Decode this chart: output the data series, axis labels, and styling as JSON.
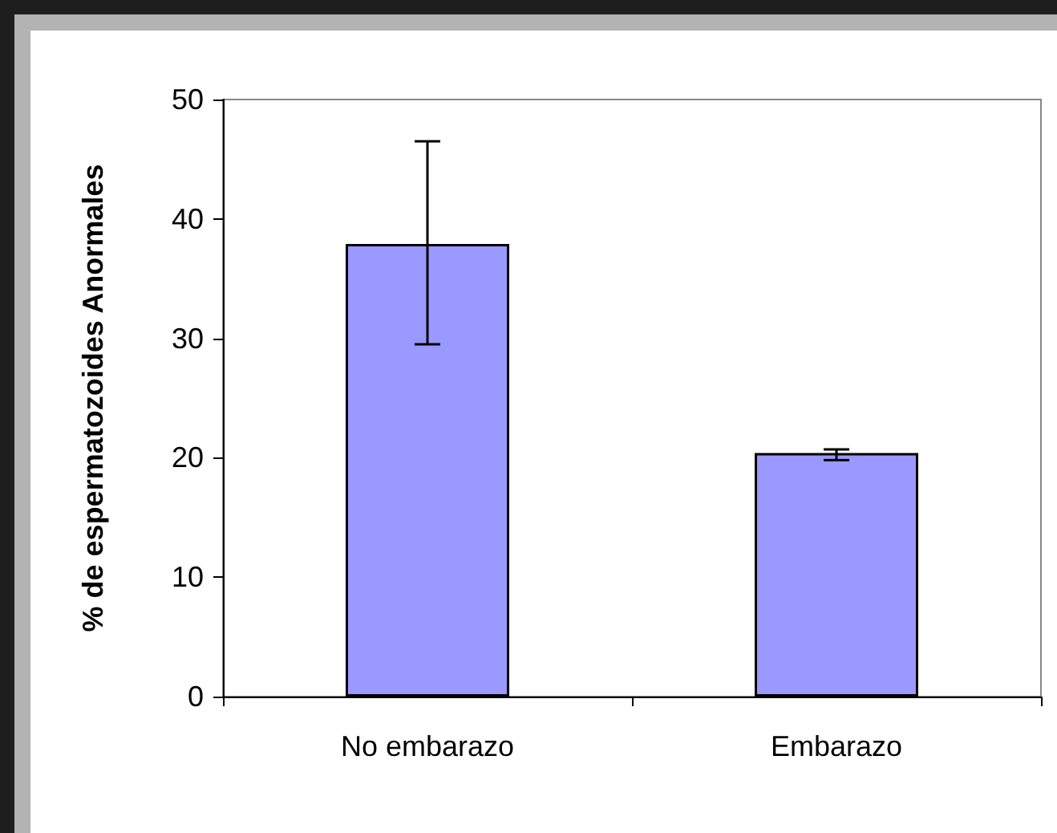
{
  "chart_data": {
    "type": "bar",
    "ylabel": "% de espermatozoides Anormales",
    "categories": [
      "No embarazo",
      "Embarazo"
    ],
    "values": [
      37.9,
      20.4
    ],
    "errors": [
      [
        29.5,
        46.5
      ],
      [
        19.8,
        20.7
      ]
    ],
    "color": "#9999ff",
    "ylim": [
      0,
      50
    ],
    "yticks": [
      0,
      10,
      20,
      30,
      40,
      50
    ],
    "grid": false
  }
}
